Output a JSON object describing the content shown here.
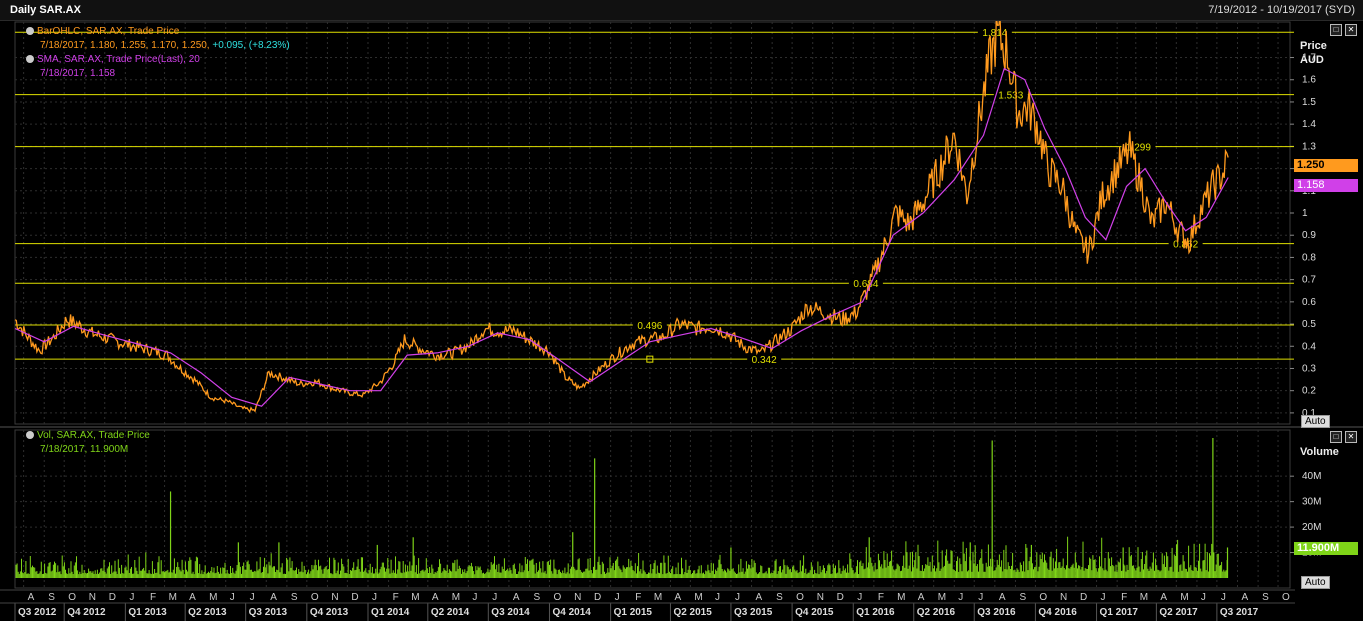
{
  "header": {
    "title": "Daily SAR.AX",
    "date_range": "7/19/2012 - 10/19/2017 (SYD)"
  },
  "price_panel": {
    "legend1_name": "BarOHLC, SAR.AX, Trade Price",
    "legend1_values": "7/18/2017, 1.180, 1.255, 1.170, 1.250,",
    "legend1_change": "+0.095, (+8.23%)",
    "legend2_name": "SMA, SAR.AX, Trade Price(Last),  20",
    "legend2_values": "7/18/2017, 1.158",
    "axis_title": "Price\nAUD",
    "last_price_tag": "1.250",
    "sma_tag": "1.158",
    "auto_label": "Auto",
    "colors": {
      "price": "#ff9a1e",
      "sma": "#d040e8",
      "hline": "#e0e000",
      "grid": "#2e2e2e"
    }
  },
  "volume_panel": {
    "legend_name": "Vol, SAR.AX, Trade Price",
    "legend_values": "7/18/2017, 11.900M",
    "axis_title": "Volume",
    "last_volume_tag": "11.900M",
    "auto_label": "Auto",
    "colors": {
      "volume": "#7fd418"
    }
  },
  "buttons": {
    "restore": "□",
    "close": "✕"
  },
  "chart_data": {
    "type": "line",
    "price": {
      "ylim": [
        0.05,
        1.86
      ],
      "ticks": [
        0.1,
        0.2,
        0.3,
        0.4,
        0.5,
        0.6,
        0.7,
        0.8,
        0.9,
        1,
        1.1,
        1.2,
        1.3,
        1.4,
        1.5,
        1.6,
        1.7
      ],
      "tick_labels": [
        "0.1",
        "0.2",
        "0.3",
        "0.4",
        "0.5",
        "0.6",
        "0.7",
        "0.8",
        "0.9",
        "1",
        "1.1",
        "1.2",
        "1.3",
        "1.4",
        "1.5",
        "1.6",
        "1.7"
      ],
      "levels": [
        {
          "value": 1.814,
          "label": "1.814",
          "at": "2016-08-01"
        },
        {
          "value": 1.533,
          "label": "1.533",
          "at": "2016-08-25"
        },
        {
          "value": 1.299,
          "label": "1.299",
          "at": "2017-03-05"
        },
        {
          "value": 0.862,
          "label": "0.862",
          "at": "2017-05-15"
        },
        {
          "value": 0.684,
          "label": "0.684",
          "at": "2016-01-20"
        },
        {
          "value": 0.496,
          "label": "0.496",
          "at": "2015-03-01"
        },
        {
          "value": 0.342,
          "label": "0.342",
          "at": "2015-08-20"
        }
      ],
      "series": [
        {
          "name": "BarOHLC, SAR.AX, Trade Price",
          "x": [
            "2012-07-19",
            "2012-08-05",
            "2012-08-25",
            "2012-09-15",
            "2012-10-05",
            "2012-10-20",
            "2012-11-10",
            "2012-12-01",
            "2012-12-20",
            "2013-01-15",
            "2013-02-10",
            "2013-03-05",
            "2013-03-25",
            "2013-04-15",
            "2013-05-10",
            "2013-06-05",
            "2013-06-25",
            "2013-07-15",
            "2013-08-05",
            "2013-08-25",
            "2013-09-20",
            "2013-10-15",
            "2013-11-10",
            "2013-12-05",
            "2013-12-25",
            "2014-01-20",
            "2014-02-10",
            "2014-02-25",
            "2014-03-20",
            "2014-04-15",
            "2014-05-10",
            "2014-06-05",
            "2014-06-25",
            "2014-07-15",
            "2014-08-10",
            "2014-09-05",
            "2014-09-30",
            "2014-10-25",
            "2014-11-15",
            "2014-12-10",
            "2015-01-05",
            "2015-02-01",
            "2015-02-25",
            "2015-03-20",
            "2015-04-15",
            "2015-05-10",
            "2015-06-01",
            "2015-06-25",
            "2015-07-20",
            "2015-08-15",
            "2015-09-05",
            "2015-10-01",
            "2015-10-25",
            "2015-11-20",
            "2015-12-15",
            "2016-01-05",
            "2016-01-25",
            "2016-02-15",
            "2016-03-05",
            "2016-03-25",
            "2016-04-15",
            "2016-05-10",
            "2016-06-01",
            "2016-06-20",
            "2016-07-10",
            "2016-07-25",
            "2016-08-05",
            "2016-08-20",
            "2016-09-05",
            "2016-09-20",
            "2016-10-05",
            "2016-10-20",
            "2016-11-10",
            "2016-12-01",
            "2016-12-20",
            "2017-01-10",
            "2017-02-01",
            "2017-02-20",
            "2017-03-10",
            "2017-03-25",
            "2017-04-15",
            "2017-05-05",
            "2017-05-20",
            "2017-06-05",
            "2017-06-25",
            "2017-07-10",
            "2017-07-18"
          ],
          "values": [
            0.52,
            0.45,
            0.38,
            0.44,
            0.52,
            0.5,
            0.46,
            0.44,
            0.42,
            0.4,
            0.38,
            0.36,
            0.3,
            0.25,
            0.17,
            0.15,
            0.12,
            0.11,
            0.28,
            0.26,
            0.23,
            0.24,
            0.21,
            0.19,
            0.18,
            0.24,
            0.33,
            0.43,
            0.39,
            0.36,
            0.37,
            0.41,
            0.48,
            0.47,
            0.47,
            0.42,
            0.38,
            0.26,
            0.21,
            0.28,
            0.35,
            0.41,
            0.43,
            0.44,
            0.5,
            0.48,
            0.49,
            0.46,
            0.4,
            0.37,
            0.42,
            0.48,
            0.58,
            0.55,
            0.52,
            0.55,
            0.67,
            0.83,
            1.0,
            0.95,
            1.05,
            1.2,
            1.35,
            1.08,
            1.45,
            1.7,
            1.8,
            1.72,
            1.45,
            1.48,
            1.38,
            1.2,
            1.12,
            0.9,
            0.82,
            1.08,
            1.2,
            1.28,
            1.12,
            0.95,
            1.05,
            0.92,
            0.87,
            1.0,
            1.12,
            1.18,
            1.25
          ]
        },
        {
          "name": "SMA, SAR.AX, Trade Price(Last),  20",
          "x": [
            "2012-07-19",
            "2012-09-01",
            "2012-10-15",
            "2012-12-01",
            "2013-01-20",
            "2013-03-10",
            "2013-04-25",
            "2013-06-10",
            "2013-07-25",
            "2013-09-05",
            "2013-10-20",
            "2013-12-05",
            "2014-01-20",
            "2014-03-01",
            "2014-04-15",
            "2014-06-01",
            "2014-07-15",
            "2014-09-01",
            "2014-10-15",
            "2014-12-01",
            "2015-01-15",
            "2015-03-01",
            "2015-04-15",
            "2015-06-01",
            "2015-07-15",
            "2015-09-01",
            "2015-10-15",
            "2015-12-01",
            "2016-01-15",
            "2016-03-01",
            "2016-04-15",
            "2016-06-01",
            "2016-07-15",
            "2016-08-15",
            "2016-09-15",
            "2016-10-15",
            "2016-11-15",
            "2016-12-15",
            "2017-01-15",
            "2017-02-15",
            "2017-03-15",
            "2017-04-15",
            "2017-05-15",
            "2017-06-15",
            "2017-07-18"
          ],
          "values": [
            0.48,
            0.42,
            0.49,
            0.45,
            0.41,
            0.37,
            0.28,
            0.17,
            0.13,
            0.26,
            0.23,
            0.2,
            0.2,
            0.36,
            0.37,
            0.4,
            0.46,
            0.43,
            0.34,
            0.24,
            0.33,
            0.42,
            0.45,
            0.48,
            0.44,
            0.39,
            0.47,
            0.54,
            0.6,
            0.9,
            1.0,
            1.15,
            1.35,
            1.65,
            1.6,
            1.38,
            1.2,
            0.98,
            0.88,
            1.12,
            1.2,
            1.05,
            0.92,
            0.98,
            1.16
          ]
        }
      ]
    },
    "volume": {
      "ylim": [
        0,
        55
      ],
      "ticks": [
        10,
        20,
        30,
        40
      ],
      "tick_labels": [
        "10M",
        "20M",
        "30M",
        "40M"
      ],
      "base_range": [
        1.5,
        7
      ],
      "spikes": [
        {
          "x": "2013-03-10",
          "value": 34
        },
        {
          "x": "2013-06-20",
          "value": 14
        },
        {
          "x": "2013-08-20",
          "value": 14
        },
        {
          "x": "2014-01-15",
          "value": 13
        },
        {
          "x": "2014-03-10",
          "value": 16
        },
        {
          "x": "2014-11-05",
          "value": 18
        },
        {
          "x": "2014-12-08",
          "value": 47
        },
        {
          "x": "2015-07-01",
          "value": 12
        },
        {
          "x": "2016-01-25",
          "value": 16
        },
        {
          "x": "2016-06-25",
          "value": 14
        },
        {
          "x": "2016-07-28",
          "value": 54
        },
        {
          "x": "2016-09-25",
          "value": 13
        },
        {
          "x": "2017-02-10",
          "value": 12
        },
        {
          "x": "2017-06-25",
          "value": 55
        },
        {
          "x": "2017-07-17",
          "value": 12
        }
      ]
    },
    "x_axis": {
      "months": [
        "A",
        "S",
        "O",
        "N",
        "D",
        "J",
        "F",
        "M",
        "A",
        "M",
        "J",
        "J",
        "A",
        "S",
        "O",
        "N",
        "D",
        "J",
        "F",
        "M",
        "A",
        "M",
        "J",
        "J",
        "A",
        "S",
        "O",
        "N",
        "D",
        "J",
        "F",
        "M",
        "A",
        "M",
        "J",
        "J",
        "A",
        "S",
        "O",
        "N",
        "D",
        "J",
        "F",
        "M",
        "A",
        "M",
        "J",
        "J",
        "A",
        "S",
        "O",
        "N",
        "D",
        "J",
        "F",
        "M",
        "A",
        "M",
        "J",
        "J",
        "A",
        "S",
        "O"
      ],
      "quarters": [
        "Q3 2012",
        "Q4 2012",
        "Q1 2013",
        "Q2 2013",
        "Q3 2013",
        "Q4 2013",
        "Q1 2014",
        "Q2 2014",
        "Q3 2014",
        "Q4 2014",
        "Q1 2015",
        "Q2 2015",
        "Q3 2015",
        "Q4 2015",
        "Q1 2016",
        "Q2 2016",
        "Q3 2016",
        "Q4 2016",
        "Q1 2017",
        "Q2 2017",
        "Q3 2017"
      ]
    }
  }
}
